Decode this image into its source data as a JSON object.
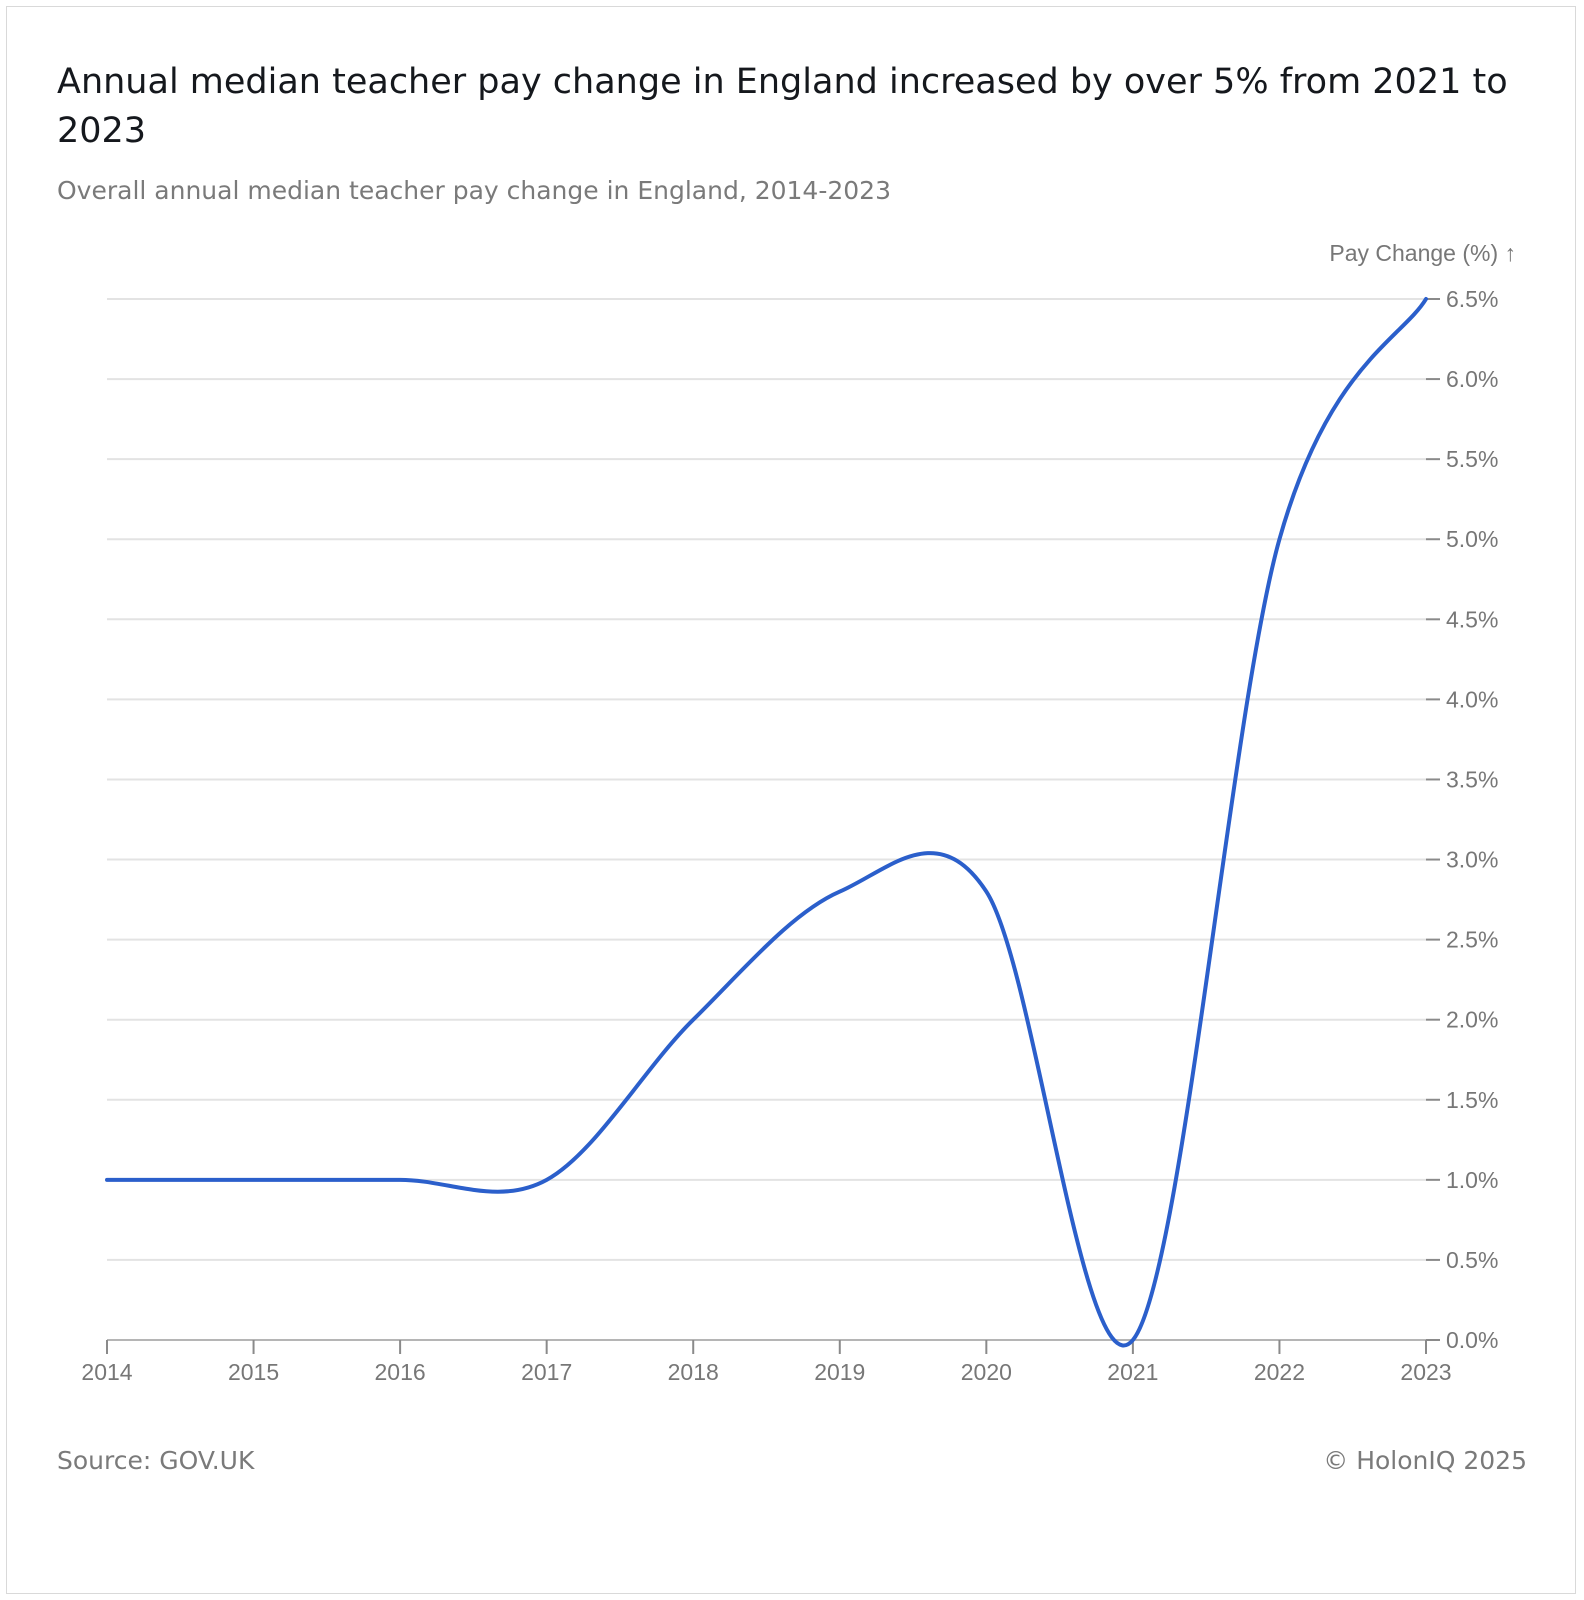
{
  "header": {
    "title": "Annual median teacher pay change in England increased by over 5% from 2021 to 2023",
    "subtitle": "Overall annual median teacher pay change in England, 2014-2023"
  },
  "footer": {
    "source": "Source: GOV.UK",
    "copyright": "© HolonIQ 2025"
  },
  "chart_data": {
    "type": "line",
    "title": "Annual median teacher pay change in England increased by over 5% from 2021 to 2023",
    "subtitle": "Overall annual median teacher pay change in England, 2014-2023",
    "xlabel": "",
    "ylabel": "Pay Change (%) ↑",
    "x": [
      2014,
      2015,
      2016,
      2017,
      2018,
      2019,
      2020,
      2021,
      2022,
      2023
    ],
    "x_tick_labels": [
      "2014",
      "2015",
      "2016",
      "2017",
      "2018",
      "2019",
      "2020",
      "2021",
      "2022",
      "2023"
    ],
    "y_ticks": [
      0,
      0.5,
      1.0,
      1.5,
      2.0,
      2.5,
      3.0,
      3.5,
      4.0,
      4.5,
      5.0,
      5.5,
      6.0,
      6.5
    ],
    "y_tick_labels": [
      "0.0%",
      "0.5%",
      "1.0%",
      "1.5%",
      "2.0%",
      "2.5%",
      "3.0%",
      "3.5%",
      "4.0%",
      "4.5%",
      "5.0%",
      "5.5%",
      "6.0%",
      "6.5%"
    ],
    "ylim": [
      0,
      6.5
    ],
    "xlim": [
      2014,
      2023
    ],
    "grid": "horizontal",
    "y_axis_position": "right",
    "series": [
      {
        "values": [
          1.0,
          1.0,
          1.0,
          1.0,
          2.0,
          2.8,
          2.8,
          0.0,
          5.0,
          6.5
        ],
        "color": "#2b5fcb"
      }
    ]
  }
}
